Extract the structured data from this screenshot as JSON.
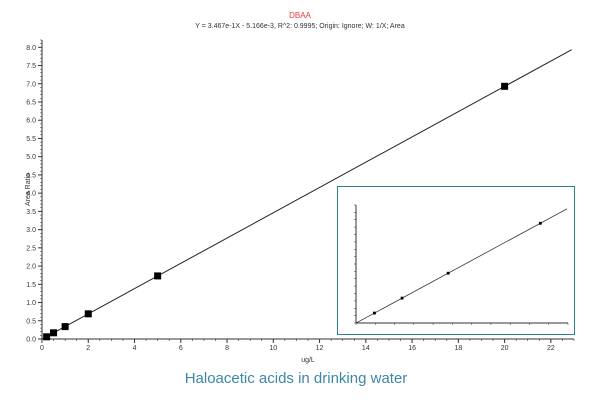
{
  "chart_data": [
    {
      "type": "scatter",
      "title": "DBAA",
      "subtitle": "Y = 3.467e-1X - 5.166e-3, R^2: 0.9995; Origin: Ignore; W: 1/X; Area",
      "xlabel": "ug/L",
      "ylabel": "Area Ratio",
      "xlim": [
        0,
        23
      ],
      "ylim": [
        0,
        8.2
      ],
      "x_ticks": [
        "0",
        "2",
        "4",
        "6",
        "8",
        "10",
        "12",
        "14",
        "16",
        "18",
        "20",
        "22"
      ],
      "y_ticks": [
        "0.0",
        "0.5",
        "1.0",
        "1.5",
        "2.0",
        "2.5",
        "3.0",
        "3.5",
        "4.0",
        "4.5",
        "5.0",
        "5.5",
        "6.0",
        "6.5",
        "7.0",
        "7.5",
        "8.0"
      ],
      "grid": false,
      "series": [
        {
          "x": [
            0.2,
            0.5,
            1,
            2,
            5,
            20
          ],
          "y": [
            0.06,
            0.17,
            0.34,
            0.69,
            1.73,
            6.93
          ]
        }
      ],
      "fit_line": {
        "slope": 0.3467,
        "intercept": -0.005166
      }
    },
    {
      "type": "scatter",
      "title": "",
      "subtitle": "",
      "xlim": [
        0,
        23
      ],
      "ylim": [
        0,
        8.2
      ],
      "series": [
        {
          "x": [
            2,
            5,
            10,
            20
          ],
          "y": [
            0.69,
            1.73,
            3.46,
            6.93
          ]
        }
      ],
      "fit_line": {
        "slope": 0.3467,
        "intercept": -0.005166
      }
    }
  ],
  "caption": "Haloacetic acids in drinking water",
  "colors": {
    "title": "#e03a3a",
    "axis": "#333333",
    "line": "#222222",
    "caption": "#3d87a8",
    "inset_border": "#2e7d8c"
  }
}
